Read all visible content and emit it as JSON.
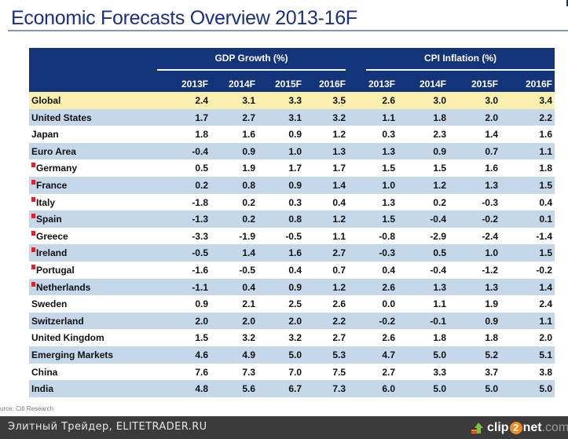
{
  "title": "Economic Forecasts Overview 2013-16F",
  "table": {
    "groups": [
      {
        "label": "GDP Growth (%)"
      },
      {
        "label": "CPI Inflation (%)"
      }
    ],
    "columns": [
      "2013F",
      "2014F",
      "2015F",
      "2016F",
      "2013F",
      "2014F",
      "2015F",
      "2016F"
    ],
    "rows": [
      {
        "label": "Global",
        "marker": false,
        "highlight": true,
        "values": [
          "2.4",
          "3.1",
          "3.3",
          "3.5",
          "2.6",
          "3.0",
          "3.0",
          "3.4"
        ]
      },
      {
        "label": "United States",
        "marker": false,
        "values": [
          "1.7",
          "2.7",
          "3.1",
          "3.2",
          "1.1",
          "1.8",
          "2.0",
          "2.2"
        ]
      },
      {
        "label": "Japan",
        "marker": false,
        "values": [
          "1.8",
          "1.6",
          "0.9",
          "1.2",
          "0.3",
          "2.3",
          "1.4",
          "1.6"
        ]
      },
      {
        "label": "Euro Area",
        "marker": false,
        "values": [
          "-0.4",
          "0.9",
          "1.0",
          "1.3",
          "1.3",
          "0.9",
          "0.7",
          "1.1"
        ]
      },
      {
        "label": "Germany",
        "marker": true,
        "values": [
          "0.5",
          "1.9",
          "1.7",
          "1.7",
          "1.5",
          "1.5",
          "1.6",
          "1.8"
        ]
      },
      {
        "label": "France",
        "marker": true,
        "values": [
          "0.2",
          "0.8",
          "0.9",
          "1.4",
          "1.0",
          "1.2",
          "1.3",
          "1.5"
        ]
      },
      {
        "label": "Italy",
        "marker": true,
        "values": [
          "-1.8",
          "0.2",
          "0.3",
          "0.4",
          "1.3",
          "0.2",
          "-0.3",
          "0.4"
        ]
      },
      {
        "label": "Spain",
        "marker": true,
        "values": [
          "-1.3",
          "0.2",
          "0.8",
          "1.2",
          "1.5",
          "-0.4",
          "-0.2",
          "0.1"
        ]
      },
      {
        "label": "Greece",
        "marker": true,
        "values": [
          "-3.3",
          "-1.9",
          "-0.5",
          "1.1",
          "-0.8",
          "-2.9",
          "-2.4",
          "-1.4"
        ]
      },
      {
        "label": "Ireland",
        "marker": true,
        "values": [
          "-0.5",
          "1.4",
          "1.6",
          "2.7",
          "-0.3",
          "0.5",
          "1.0",
          "1.5"
        ]
      },
      {
        "label": "Portugal",
        "marker": true,
        "values": [
          "-1.6",
          "-0.5",
          "0.4",
          "0.7",
          "0.4",
          "-0.4",
          "-1.2",
          "-0.2"
        ]
      },
      {
        "label": "Netherlands",
        "marker": true,
        "values": [
          "-1.1",
          "0.4",
          "0.9",
          "1.2",
          "2.6",
          "1.3",
          "1.3",
          "1.4"
        ]
      },
      {
        "label": "Sweden",
        "marker": false,
        "values": [
          "0.9",
          "2.1",
          "2.5",
          "2.6",
          "0.0",
          "1.1",
          "1.9",
          "2.4"
        ]
      },
      {
        "label": "Switzerland",
        "marker": false,
        "values": [
          "2.0",
          "2.0",
          "2.0",
          "2.2",
          "-0.2",
          "-0.1",
          "0.9",
          "1.1"
        ]
      },
      {
        "label": "United Kingdom",
        "marker": false,
        "values": [
          "1.5",
          "3.2",
          "3.2",
          "2.7",
          "2.6",
          "1.8",
          "1.8",
          "2.0"
        ]
      },
      {
        "label": "Emerging Markets",
        "marker": false,
        "values": [
          "4.6",
          "4.9",
          "5.0",
          "5.3",
          "4.7",
          "5.0",
          "5.2",
          "5.1"
        ]
      },
      {
        "label": "China",
        "marker": false,
        "values": [
          "7.6",
          "7.3",
          "7.0",
          "7.5",
          "2.7",
          "3.3",
          "3.7",
          "3.8"
        ]
      },
      {
        "label": "India",
        "marker": false,
        "values": [
          "4.8",
          "5.6",
          "6.7",
          "7.3",
          "6.0",
          "5.0",
          "5.0",
          "5.0"
        ]
      }
    ]
  },
  "source": "urce: Citi Research",
  "footer": {
    "watermark": "Элитный Трейдер, ELITETRADER.RU",
    "logo": {
      "pre": "clip",
      "digit": "2",
      "post": "net",
      "tld": ".com",
      "icon": "upload-arrow-icon"
    }
  },
  "colors": {
    "header_bg": "#14347a",
    "highlight_row": "#fbf0ae",
    "band_row": "#c4d8ea",
    "marker": "#e4202a",
    "title": "#1a3080"
  }
}
